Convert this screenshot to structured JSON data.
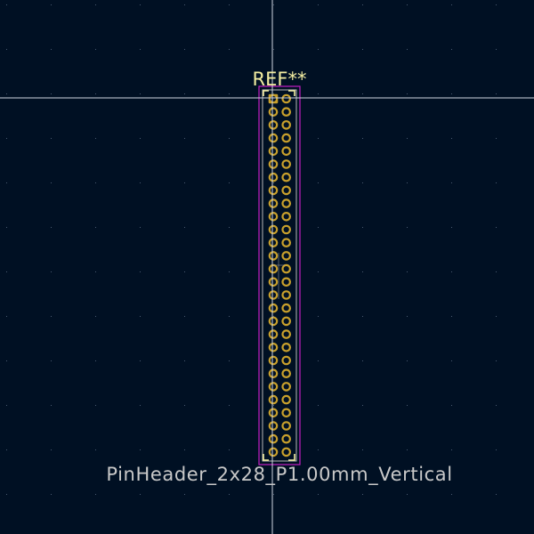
{
  "footprint": {
    "reference": "REF**",
    "value": "PinHeader_2x28_P1.00mm_Vertical",
    "pin_columns": 2,
    "pin_rows": 28
  },
  "colors": {
    "background": "#001023",
    "grid_dot": "#4a5a70",
    "crosshair": "#cfd6e0",
    "courtyard": "#c51fc4",
    "fab_outline": "#b7b7b7",
    "silkscreen": "#f2eda1",
    "pad": "#c8a02c",
    "reference_text": "#f2eda1",
    "value_text": "#c8c8c8"
  }
}
